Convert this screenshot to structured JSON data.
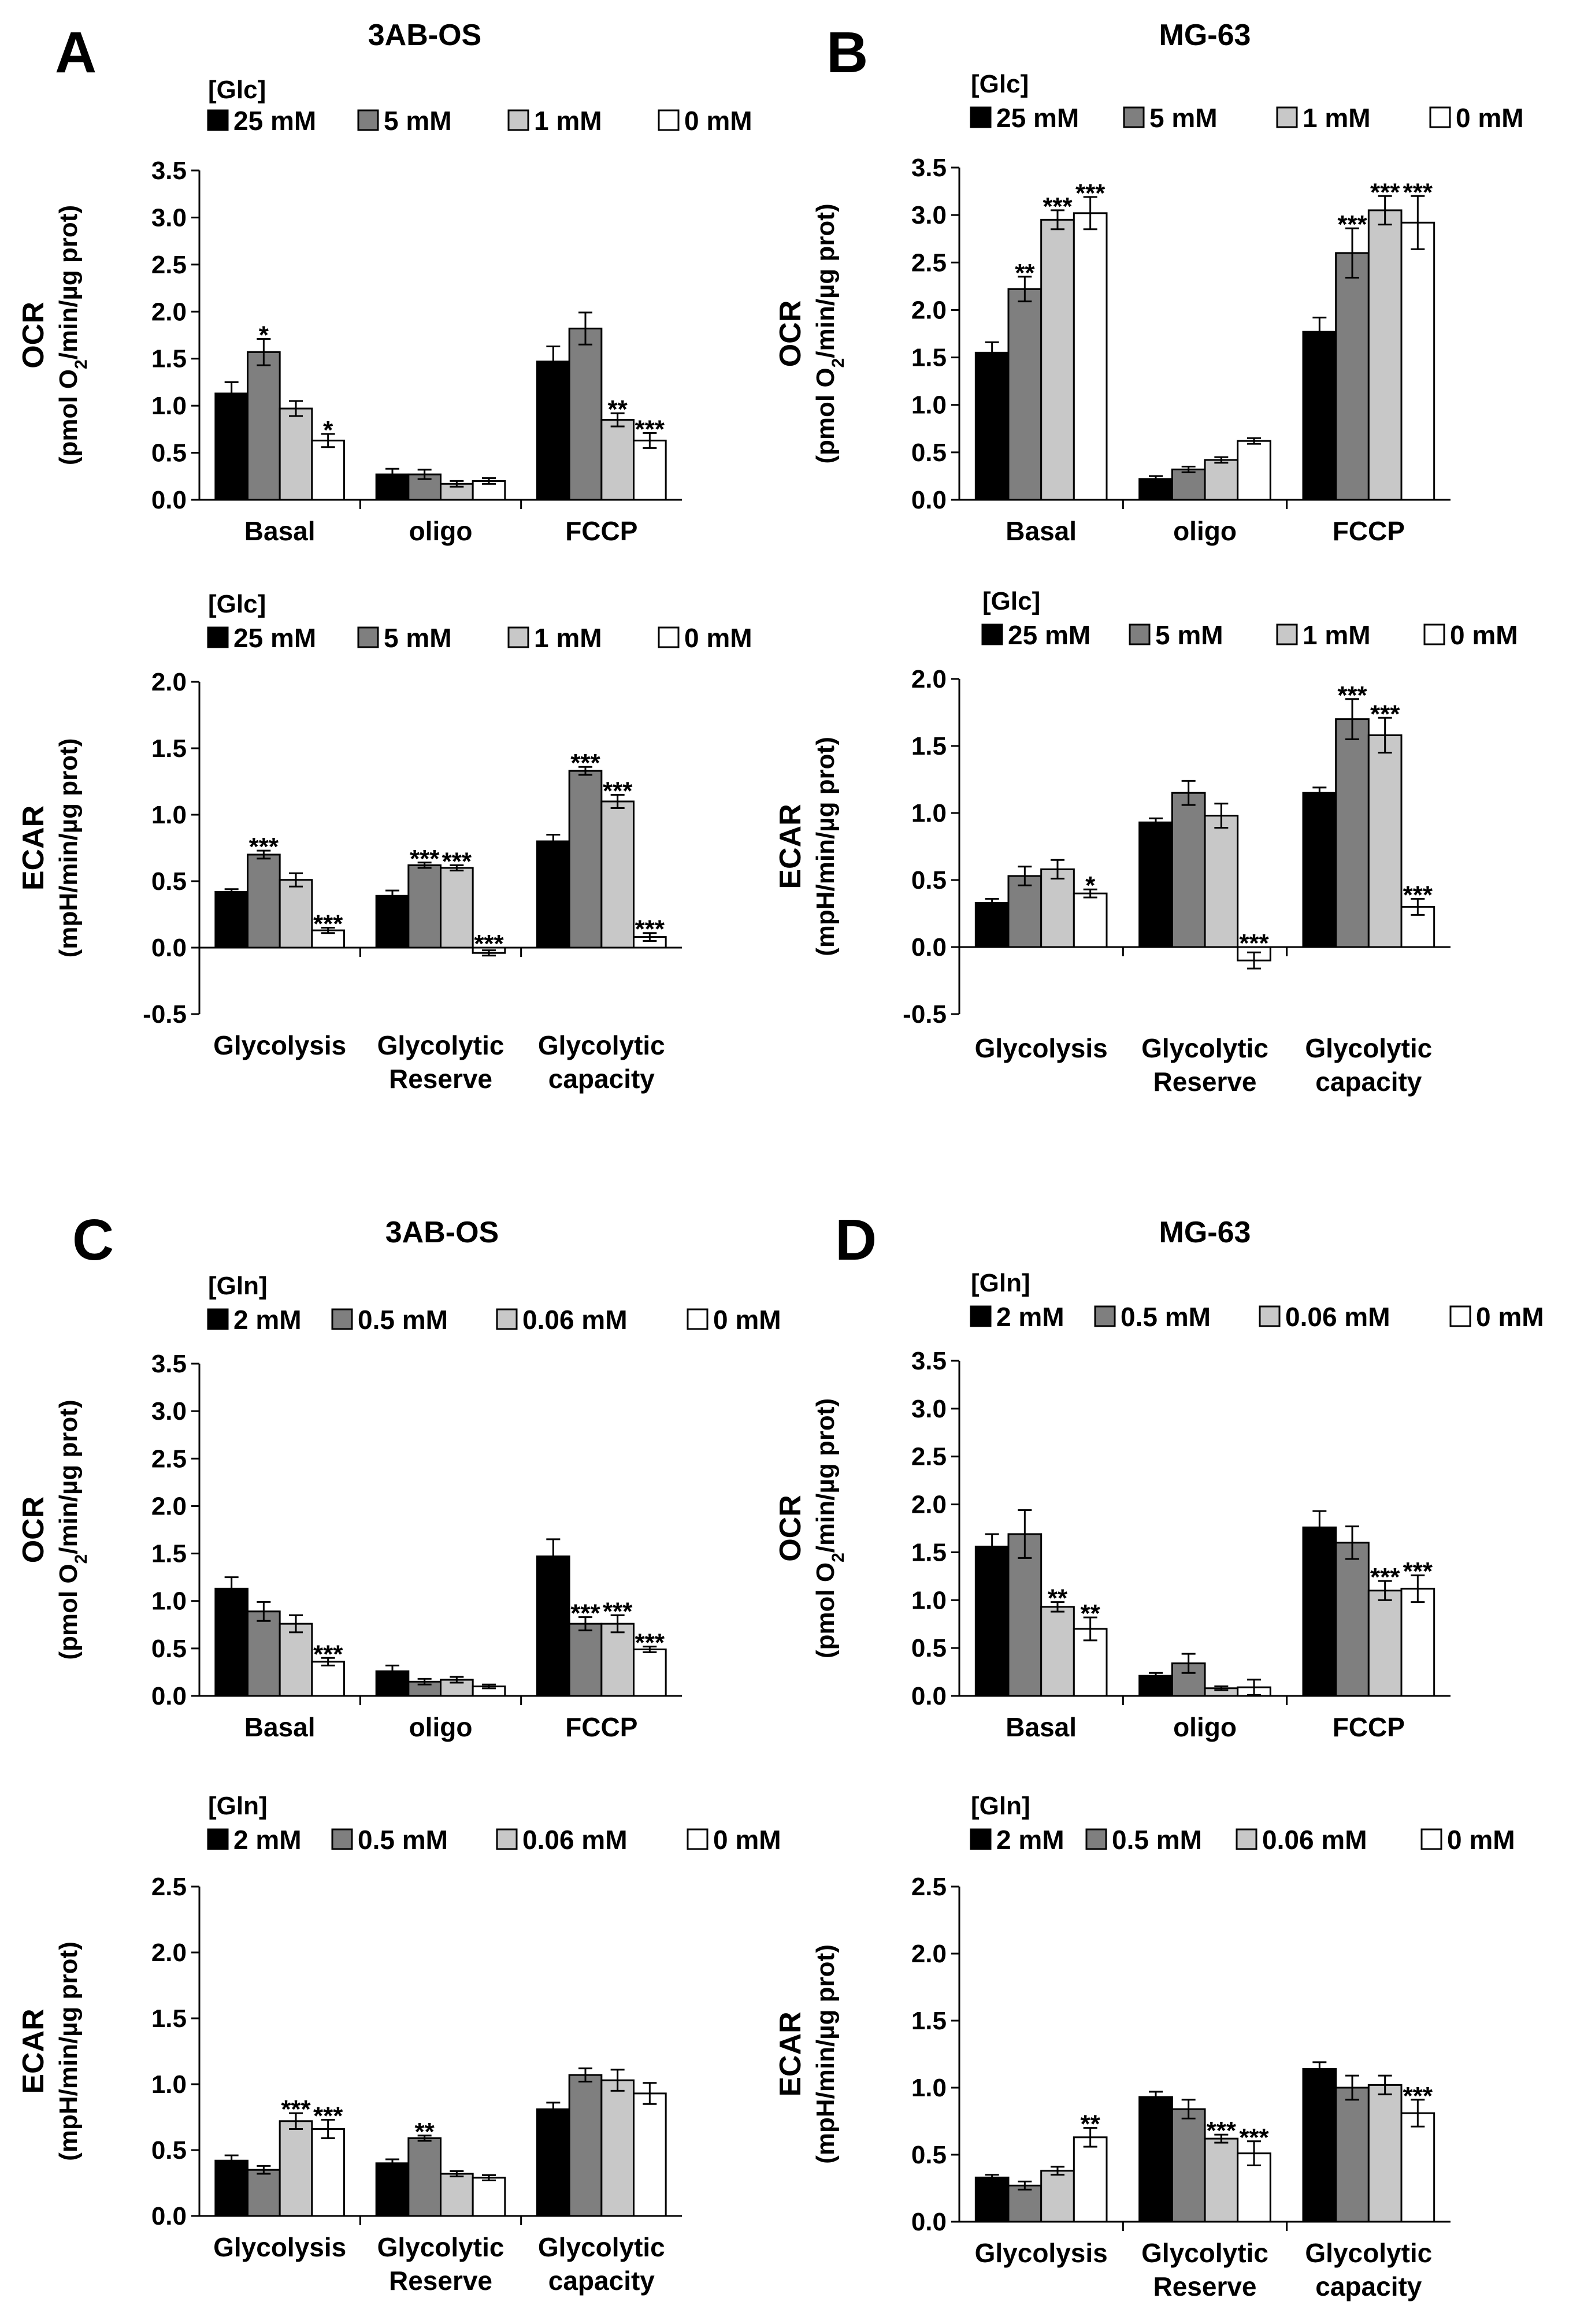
{
  "figure": {
    "panels": [
      {
        "letter": "A",
        "title": "3AB-OS"
      },
      {
        "letter": "B",
        "title": "MG-63"
      },
      {
        "letter": "C",
        "title": "3AB-OS"
      },
      {
        "letter": "D",
        "title": "MG-63"
      }
    ]
  },
  "colors": {
    "black": "#000000",
    "dark_gray": "#7f7f7f",
    "light_gray": "#c8c8c8",
    "white": "#ffffff"
  },
  "chart_data": [
    {
      "id": "A-OCR",
      "panel": "A",
      "type": "bar",
      "legend_title": "[Glc]",
      "series": [
        {
          "name": "25 mM",
          "color": "#000000",
          "values": [
            1.13,
            0.27,
            1.47
          ],
          "errors": [
            0.12,
            0.06,
            0.16
          ],
          "sig": [
            "",
            "",
            ""
          ]
        },
        {
          "name": "5 mM",
          "color": "#7f7f7f",
          "values": [
            1.57,
            0.27,
            1.82
          ],
          "errors": [
            0.14,
            0.05,
            0.17
          ],
          "sig": [
            "*",
            "",
            ""
          ]
        },
        {
          "name": "1 mM",
          "color": "#c8c8c8",
          "values": [
            0.97,
            0.17,
            0.85
          ],
          "errors": [
            0.08,
            0.03,
            0.07
          ],
          "sig": [
            "",
            "",
            "**"
          ]
        },
        {
          "name": "0 mM",
          "color": "#ffffff",
          "values": [
            0.63,
            0.2,
            0.63
          ],
          "errors": [
            0.07,
            0.03,
            0.08
          ],
          "sig": [
            "*",
            "",
            "***"
          ]
        }
      ],
      "categories": [
        [
          "Basal"
        ],
        [
          "oligo"
        ],
        [
          "FCCP"
        ]
      ],
      "ylabel": "OCR",
      "yunit": "(pmol O2/min/µg prot)",
      "ylim": [
        0,
        3.5
      ],
      "yticks": [
        "0.0",
        "0.5",
        "1.0",
        "1.5",
        "2.0",
        "2.5",
        "3.0",
        "3.5"
      ]
    },
    {
      "id": "A-ECAR",
      "panel": "A",
      "type": "bar",
      "legend_title": "[Glc]",
      "series": [
        {
          "name": "25 mM",
          "color": "#000000",
          "values": [
            0.42,
            0.39,
            0.8
          ],
          "errors": [
            0.02,
            0.04,
            0.05
          ],
          "sig": [
            "",
            "",
            ""
          ]
        },
        {
          "name": "5 mM",
          "color": "#7f7f7f",
          "values": [
            0.7,
            0.62,
            1.33
          ],
          "errors": [
            0.03,
            0.02,
            0.03
          ],
          "sig": [
            "***",
            "***",
            "***"
          ]
        },
        {
          "name": "1 mM",
          "color": "#c8c8c8",
          "values": [
            0.51,
            0.6,
            1.1
          ],
          "errors": [
            0.05,
            0.02,
            0.05
          ],
          "sig": [
            "",
            "***",
            "***"
          ]
        },
        {
          "name": "0 mM",
          "color": "#ffffff",
          "values": [
            0.13,
            -0.04,
            0.08
          ],
          "errors": [
            0.02,
            0.02,
            0.03
          ],
          "sig": [
            "***",
            "***",
            "***"
          ]
        }
      ],
      "categories": [
        [
          "Glycolysis"
        ],
        [
          "Glycolytic",
          "Reserve"
        ],
        [
          "Glycolytic",
          "capacity"
        ]
      ],
      "ylabel": "ECAR",
      "yunit": "(mpH/min/µg prot)",
      "ylim": [
        -0.5,
        2.0
      ],
      "yticks": [
        "-0.5",
        "0.0",
        "0.5",
        "1.0",
        "1.5",
        "2.0"
      ]
    },
    {
      "id": "B-OCR",
      "panel": "B",
      "type": "bar",
      "legend_title": "[Glc]",
      "series": [
        {
          "name": "25 mM",
          "color": "#000000",
          "values": [
            1.55,
            0.22,
            1.77
          ],
          "errors": [
            0.11,
            0.03,
            0.15
          ],
          "sig": [
            "",
            "",
            ""
          ]
        },
        {
          "name": "5 mM",
          "color": "#7f7f7f",
          "values": [
            2.22,
            0.32,
            2.6
          ],
          "errors": [
            0.13,
            0.03,
            0.26
          ],
          "sig": [
            "**",
            "",
            "***"
          ]
        },
        {
          "name": "1 mM",
          "color": "#c8c8c8",
          "values": [
            2.95,
            0.42,
            3.05
          ],
          "errors": [
            0.1,
            0.03,
            0.15
          ],
          "sig": [
            "***",
            "",
            "***"
          ]
        },
        {
          "name": "0 mM",
          "color": "#ffffff",
          "values": [
            3.02,
            0.62,
            2.92
          ],
          "errors": [
            0.17,
            0.03,
            0.28
          ],
          "sig": [
            "***",
            "",
            "***"
          ]
        }
      ],
      "categories": [
        [
          "Basal"
        ],
        [
          "oligo"
        ],
        [
          "FCCP"
        ]
      ],
      "ylabel": "OCR",
      "yunit": "(pmol O2/min/µg prot)",
      "ylim": [
        0,
        3.5
      ],
      "yticks": [
        "0.0",
        "0.5",
        "1.0",
        "1.5",
        "2.0",
        "2.5",
        "3.0",
        "3.5"
      ]
    },
    {
      "id": "B-ECAR",
      "panel": "B",
      "type": "bar",
      "legend_title": "[Glc]",
      "series": [
        {
          "name": "25 mM",
          "color": "#000000",
          "values": [
            0.33,
            0.93,
            1.15
          ],
          "errors": [
            0.03,
            0.03,
            0.04
          ],
          "sig": [
            "",
            "",
            ""
          ]
        },
        {
          "name": "5 mM",
          "color": "#7f7f7f",
          "values": [
            0.53,
            1.15,
            1.7
          ],
          "errors": [
            0.07,
            0.09,
            0.15
          ],
          "sig": [
            "",
            "",
            "***"
          ]
        },
        {
          "name": "1 mM",
          "color": "#c8c8c8",
          "values": [
            0.58,
            0.98,
            1.58
          ],
          "errors": [
            0.07,
            0.09,
            0.13
          ],
          "sig": [
            "",
            "",
            "***"
          ]
        },
        {
          "name": "0 mM",
          "color": "#ffffff",
          "values": [
            0.4,
            -0.1,
            0.3
          ],
          "errors": [
            0.03,
            0.06,
            0.06
          ],
          "sig": [
            "*",
            "***",
            "***"
          ]
        }
      ],
      "categories": [
        [
          "Glycolysis"
        ],
        [
          "Glycolytic",
          "Reserve"
        ],
        [
          "Glycolytic",
          "capacity"
        ]
      ],
      "ylabel": "ECAR",
      "yunit": "(mpH/min/µg prot)",
      "ylim": [
        -0.5,
        2.0
      ],
      "yticks": [
        "-0.5",
        "0.0",
        "0.5",
        "1.0",
        "1.5",
        "2.0"
      ]
    },
    {
      "id": "C-OCR",
      "panel": "C",
      "type": "bar",
      "legend_title": "[Gln]",
      "series": [
        {
          "name": "2 mM",
          "color": "#000000",
          "values": [
            1.13,
            0.26,
            1.47
          ],
          "errors": [
            0.12,
            0.06,
            0.18
          ],
          "sig": [
            "",
            "",
            ""
          ]
        },
        {
          "name": "0.5 mM",
          "color": "#7f7f7f",
          "values": [
            0.89,
            0.15,
            0.76
          ],
          "errors": [
            0.1,
            0.03,
            0.07
          ],
          "sig": [
            "",
            "",
            "***"
          ]
        },
        {
          "name": "0.06 mM",
          "color": "#c8c8c8",
          "values": [
            0.76,
            0.17,
            0.76
          ],
          "errors": [
            0.09,
            0.03,
            0.09
          ],
          "sig": [
            "",
            "",
            "***"
          ]
        },
        {
          "name": "0 mM",
          "color": "#ffffff",
          "values": [
            0.36,
            0.1,
            0.49
          ],
          "errors": [
            0.04,
            0.02,
            0.03
          ],
          "sig": [
            "***",
            "",
            "***"
          ]
        }
      ],
      "categories": [
        [
          "Basal"
        ],
        [
          "oligo"
        ],
        [
          "FCCP"
        ]
      ],
      "ylabel": "OCR",
      "yunit": "(pmol O2/min/µg prot)",
      "ylim": [
        0,
        3.5
      ],
      "yticks": [
        "0.0",
        "0.5",
        "1.0",
        "1.5",
        "2.0",
        "2.5",
        "3.0",
        "3.5"
      ]
    },
    {
      "id": "C-ECAR",
      "panel": "C",
      "type": "bar",
      "legend_title": "[Gln]",
      "series": [
        {
          "name": "2 mM",
          "color": "#000000",
          "values": [
            0.42,
            0.4,
            0.81
          ],
          "errors": [
            0.04,
            0.03,
            0.05
          ],
          "sig": [
            "",
            "",
            ""
          ]
        },
        {
          "name": "0.5 mM",
          "color": "#7f7f7f",
          "values": [
            0.35,
            0.59,
            1.07
          ],
          "errors": [
            0.03,
            0.02,
            0.05
          ],
          "sig": [
            "",
            "**",
            ""
          ]
        },
        {
          "name": "0.06 mM",
          "color": "#c8c8c8",
          "values": [
            0.72,
            0.32,
            1.03
          ],
          "errors": [
            0.06,
            0.02,
            0.08
          ],
          "sig": [
            "***",
            "",
            ""
          ]
        },
        {
          "name": "0 mM",
          "color": "#ffffff",
          "values": [
            0.66,
            0.29,
            0.93
          ],
          "errors": [
            0.07,
            0.02,
            0.08
          ],
          "sig": [
            "***",
            "",
            ""
          ]
        }
      ],
      "categories": [
        [
          "Glycolysis"
        ],
        [
          "Glycolytic",
          "Reserve"
        ],
        [
          "Glycolytic",
          "capacity"
        ]
      ],
      "ylabel": "ECAR",
      "yunit": "(mpH/min/µg prot)",
      "ylim": [
        0,
        2.5
      ],
      "yticks": [
        "0.0",
        "0.5",
        "1.0",
        "1.5",
        "2.0",
        "2.5"
      ]
    },
    {
      "id": "D-OCR",
      "panel": "D",
      "type": "bar",
      "legend_title": "[Gln]",
      "series": [
        {
          "name": "2 mM",
          "color": "#000000",
          "values": [
            1.56,
            0.21,
            1.76
          ],
          "errors": [
            0.13,
            0.03,
            0.17
          ],
          "sig": [
            "",
            "",
            ""
          ]
        },
        {
          "name": "0.5 mM",
          "color": "#7f7f7f",
          "values": [
            1.69,
            0.34,
            1.6
          ],
          "errors": [
            0.25,
            0.1,
            0.17
          ],
          "sig": [
            "",
            "",
            ""
          ]
        },
        {
          "name": "0.06 mM",
          "color": "#c8c8c8",
          "values": [
            0.93,
            0.08,
            1.1
          ],
          "errors": [
            0.05,
            0.02,
            0.1
          ],
          "sig": [
            "**",
            "",
            "***"
          ]
        },
        {
          "name": "0 mM",
          "color": "#ffffff",
          "values": [
            0.7,
            0.09,
            1.12
          ],
          "errors": [
            0.12,
            0.08,
            0.14
          ],
          "sig": [
            "**",
            "",
            "***"
          ]
        }
      ],
      "categories": [
        [
          "Basal"
        ],
        [
          "oligo"
        ],
        [
          "FCCP"
        ]
      ],
      "ylabel": "OCR",
      "yunit": "(pmol O2/min/µg prot)",
      "ylim": [
        0,
        3.5
      ],
      "yticks": [
        "0.0",
        "0.5",
        "1.0",
        "1.5",
        "2.0",
        "2.5",
        "3.0",
        "3.5"
      ]
    },
    {
      "id": "D-ECAR",
      "panel": "D",
      "type": "bar",
      "legend_title": "[Gln]",
      "series": [
        {
          "name": "2 mM",
          "color": "#000000",
          "values": [
            0.33,
            0.93,
            1.14
          ],
          "errors": [
            0.02,
            0.04,
            0.05
          ],
          "sig": [
            "",
            "",
            ""
          ]
        },
        {
          "name": "0.5 mM",
          "color": "#7f7f7f",
          "values": [
            0.27,
            0.84,
            1.0
          ],
          "errors": [
            0.03,
            0.07,
            0.09
          ],
          "sig": [
            "",
            "",
            ""
          ]
        },
        {
          "name": "0.06 mM",
          "color": "#c8c8c8",
          "values": [
            0.38,
            0.62,
            1.02
          ],
          "errors": [
            0.03,
            0.03,
            0.07
          ],
          "sig": [
            "",
            "***",
            ""
          ]
        },
        {
          "name": "0 mM",
          "color": "#ffffff",
          "values": [
            0.63,
            0.51,
            0.81
          ],
          "errors": [
            0.07,
            0.09,
            0.1
          ],
          "sig": [
            "**",
            "***",
            "***"
          ]
        }
      ],
      "categories": [
        [
          "Glycolysis"
        ],
        [
          "Glycolytic",
          "Reserve"
        ],
        [
          "Glycolytic",
          "capacity"
        ]
      ],
      "ylabel": "ECAR",
      "yunit": "(mpH/min/µg prot)",
      "ylim": [
        0,
        2.5
      ],
      "yticks": [
        "0.0",
        "0.5",
        "1.0",
        "1.5",
        "2.0",
        "2.5"
      ]
    }
  ]
}
